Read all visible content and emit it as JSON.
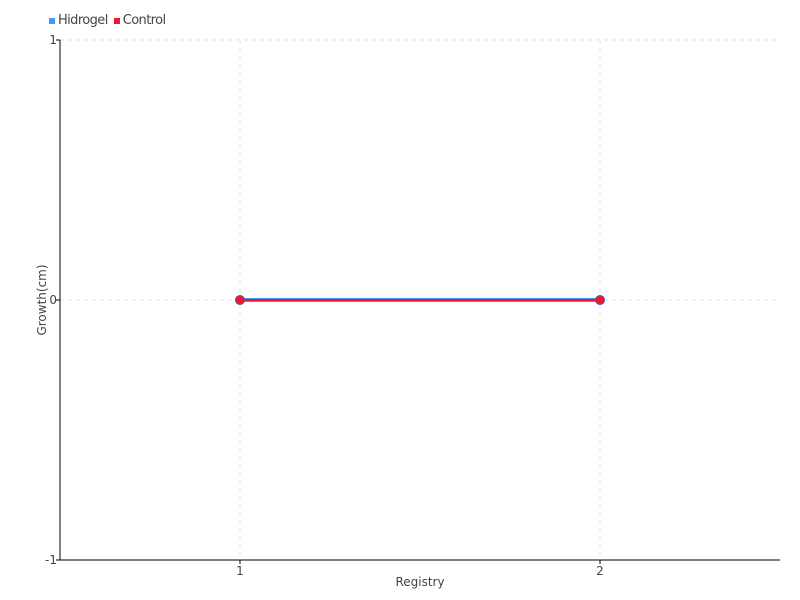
{
  "chart_data": {
    "type": "line",
    "title": "",
    "xlabel": "Registry",
    "ylabel": "Growth(cm)",
    "x": [
      1,
      2
    ],
    "xlim": [
      0.5,
      2.5
    ],
    "ylim": [
      -1,
      1
    ],
    "xticks": [
      "1",
      "2"
    ],
    "yticks": [
      "1",
      "0",
      "-1"
    ],
    "grid": true,
    "legend_position": "top-left",
    "series": [
      {
        "name": "Hidrogel",
        "values": [
          0,
          0
        ],
        "color": "#3d9bf5"
      },
      {
        "name": "Control",
        "values": [
          0,
          0
        ],
        "color": "#f5142b"
      }
    ]
  }
}
